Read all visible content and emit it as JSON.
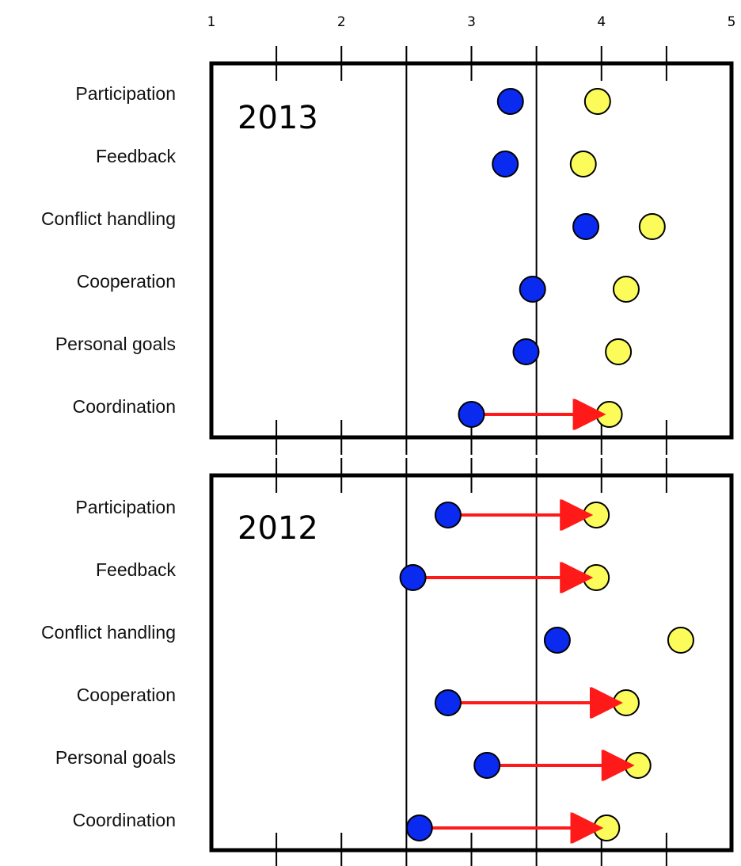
{
  "chart_data": {
    "type": "scatter",
    "x_ticks": [
      1,
      2,
      3,
      4,
      5
    ],
    "xlim": [
      1,
      5
    ],
    "reference_lines": [
      2.5,
      3.5
    ],
    "colors": {
      "series_a": "#0a2aef",
      "series_b": "#fbfb5a",
      "arrow": "#ff1a1a"
    },
    "panels": [
      {
        "title": "2013",
        "rows": [
          {
            "label": "Participation",
            "blue": 3.3,
            "yellow": 3.97,
            "arrow": false
          },
          {
            "label": "Feedback",
            "blue": 3.26,
            "yellow": 3.86,
            "arrow": false
          },
          {
            "label": "Conflict handling",
            "blue": 3.88,
            "yellow": 4.39,
            "arrow": false
          },
          {
            "label": "Cooperation",
            "blue": 3.47,
            "yellow": 4.19,
            "arrow": false
          },
          {
            "label": "Personal goals",
            "blue": 3.42,
            "yellow": 4.13,
            "arrow": false
          },
          {
            "label": "Coordination",
            "blue": 3.0,
            "yellow": 4.06,
            "arrow": true
          }
        ]
      },
      {
        "title": "2012",
        "rows": [
          {
            "label": "Participation",
            "blue": 2.82,
            "yellow": 3.96,
            "arrow": true
          },
          {
            "label": "Feedback",
            "blue": 2.55,
            "yellow": 3.96,
            "arrow": true
          },
          {
            "label": "Conflict handling",
            "blue": 3.66,
            "yellow": 4.61,
            "arrow": false
          },
          {
            "label": "Cooperation",
            "blue": 2.82,
            "yellow": 4.19,
            "arrow": true
          },
          {
            "label": "Personal goals",
            "blue": 3.12,
            "yellow": 4.28,
            "arrow": true
          },
          {
            "label": "Coordination",
            "blue": 2.6,
            "yellow": 4.04,
            "arrow": true
          }
        ]
      }
    ]
  }
}
